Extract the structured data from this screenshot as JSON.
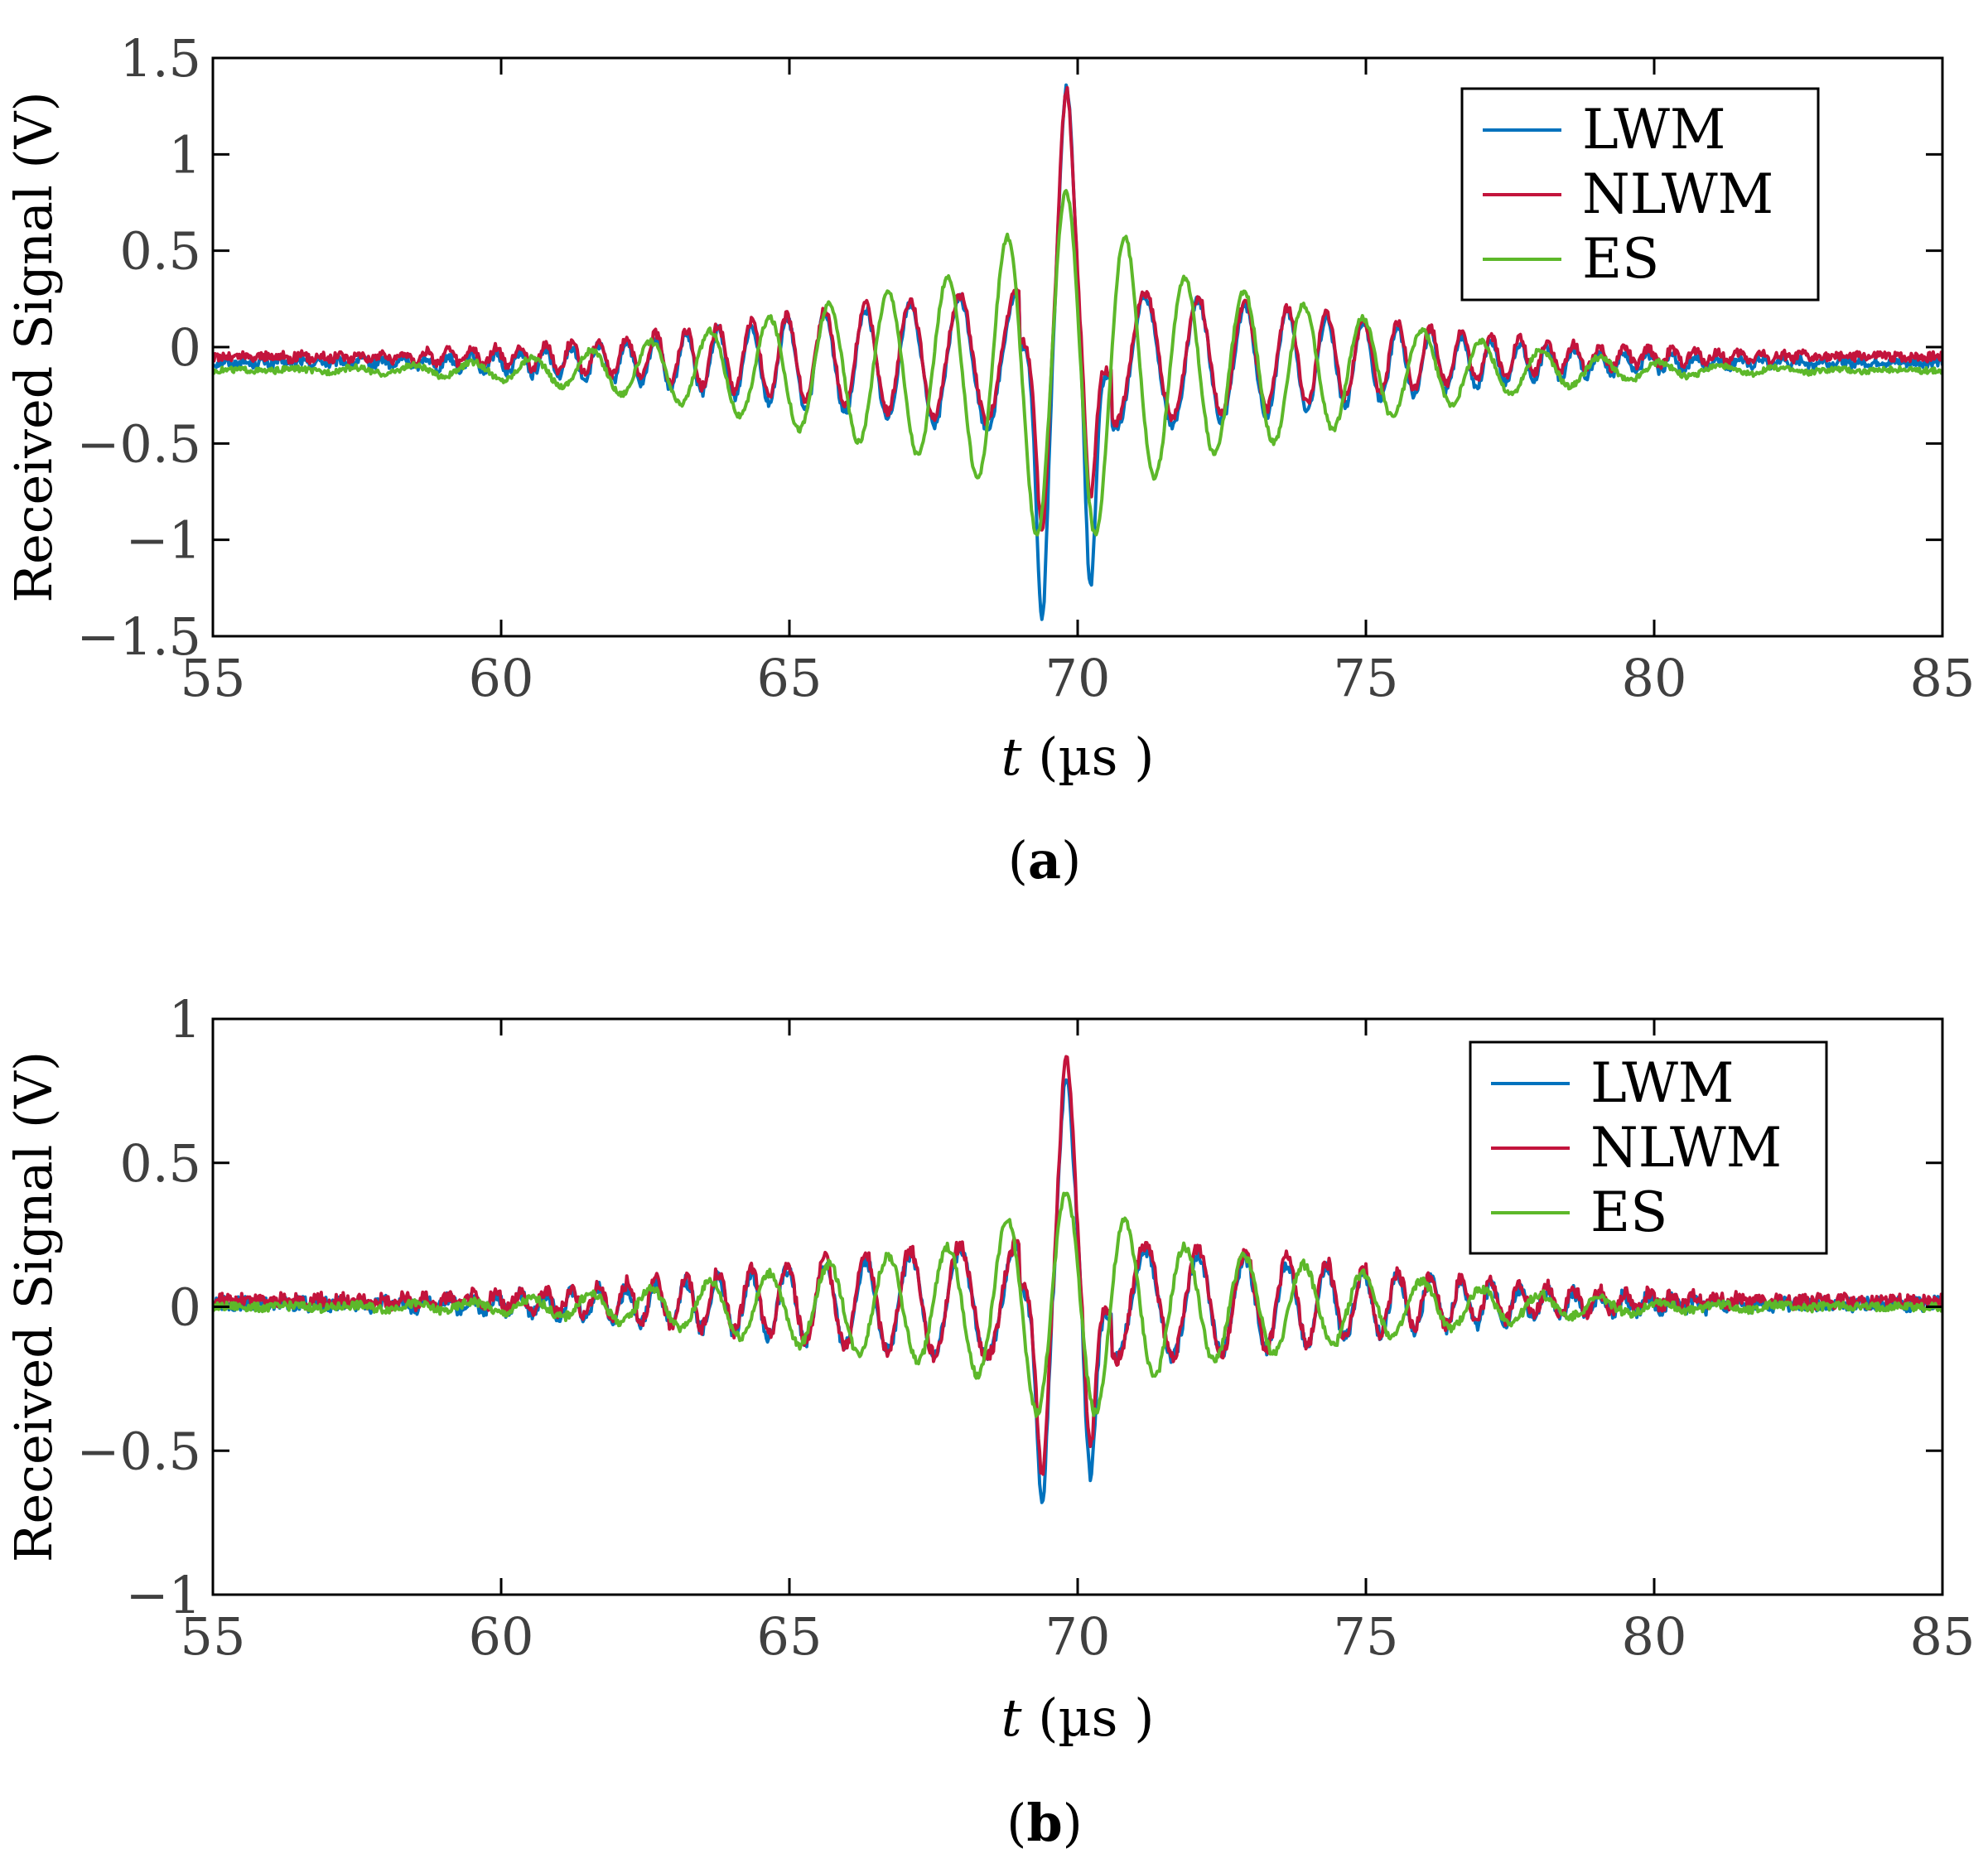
{
  "chart_data": [
    {
      "type": "line",
      "panel_label": "a",
      "xlabel_italic": "t",
      "xlabel_unit": "(µs )",
      "ylabel": "Received Signal  (V)",
      "xlim": [
        55,
        85
      ],
      "ylim": [
        -1.5,
        1.5
      ],
      "xticks": [
        55,
        60,
        65,
        70,
        75,
        80,
        85
      ],
      "yticks": [
        1.5,
        1,
        0.5,
        0,
        -0.5,
        -1,
        -1.5
      ],
      "ytick_labels": [
        "1.5",
        "1",
        "0.5",
        "0",
        "−0.5",
        "−1",
        "−1.5"
      ],
      "legend": {
        "position": "top-right",
        "entries": [
          "LWM",
          "NLWM",
          "ES"
        ]
      },
      "series": [
        {
          "name": "LWM",
          "color": "#0072BD",
          "model": "lwm",
          "amp": 1.42,
          "min": -1.25,
          "baseline": -0.08
        },
        {
          "name": "NLWM",
          "color": "#C3143C",
          "model": "nlwm",
          "amp": 1.38,
          "min": -0.82,
          "baseline": -0.05
        },
        {
          "name": "ES",
          "color": "#5DB82A",
          "model": "es",
          "amp": 0.95,
          "min": -0.9,
          "baseline": -0.12
        }
      ]
    },
    {
      "type": "line",
      "panel_label": "b",
      "xlabel_italic": "t",
      "xlabel_unit": "(µs )",
      "ylabel": "Received Signal  (V)",
      "xlim": [
        55,
        85
      ],
      "ylim": [
        -1,
        1
      ],
      "xticks": [
        55,
        60,
        65,
        70,
        75,
        80,
        85
      ],
      "yticks": [
        1,
        0.5,
        0,
        -0.5,
        -1
      ],
      "ytick_labels": [
        "1",
        "0.5",
        "0",
        "−0.5",
        "−1"
      ],
      "legend": {
        "position": "top-right",
        "entries": [
          "LWM",
          "NLWM",
          "ES"
        ]
      },
      "series": [
        {
          "name": "LWM",
          "color": "#0072BD",
          "model": "lwm",
          "amp": 0.78,
          "min": -0.65,
          "baseline": 0.01
        },
        {
          "name": "NLWM",
          "color": "#C3143C",
          "model": "nlwm",
          "amp": 0.83,
          "min": -0.55,
          "baseline": 0.02
        },
        {
          "name": "ES",
          "color": "#5DB82A",
          "model": "es",
          "amp": 0.4,
          "min": -0.4,
          "baseline": 0.0
        }
      ]
    }
  ]
}
